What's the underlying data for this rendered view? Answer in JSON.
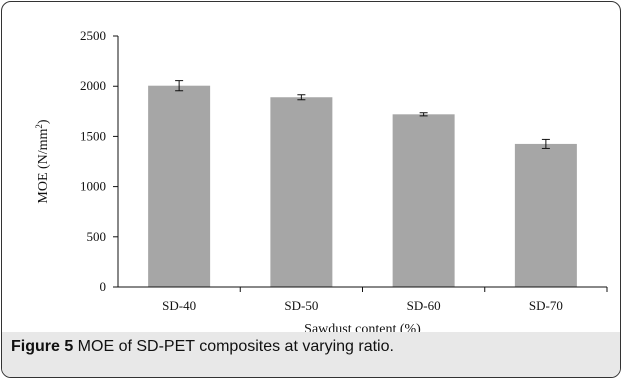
{
  "chart_data": {
    "type": "bar",
    "categories": [
      "SD-40",
      "SD-50",
      "SD-60",
      "SD-70"
    ],
    "values": [
      2005,
      1890,
      1720,
      1425
    ],
    "error": [
      50,
      25,
      15,
      45
    ],
    "xlabel": "Sawdust content (%)",
    "ylabel_main": "MOE (N/mm",
    "ylabel_sup": "2",
    "ylabel_end": ")",
    "ylim": [
      0,
      2500
    ],
    "yticks": [
      0,
      500,
      1000,
      1500,
      2000,
      2500
    ],
    "grid": false,
    "legend": "none",
    "bar_color": "#a6a6a6"
  },
  "caption": {
    "label": "Figure 5",
    "text": " MOE of SD-PET composites at varying ratio."
  }
}
